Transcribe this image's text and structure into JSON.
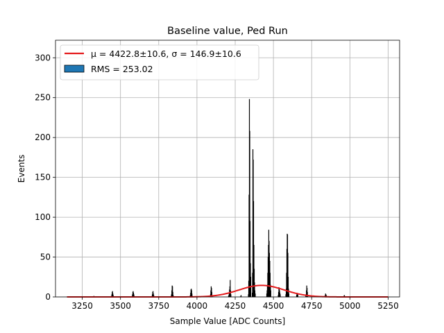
{
  "chart_data": {
    "type": "histogram",
    "title": "Baseline value, Ped Run",
    "xlabel": "Sample Value [ADC Counts]",
    "ylabel": "Events",
    "xlim": [
      3075,
      5325
    ],
    "ylim": [
      0,
      322
    ],
    "xticks": [
      3250,
      3500,
      3750,
      4000,
      4250,
      4500,
      4750,
      5000,
      5250
    ],
    "yticks": [
      0,
      50,
      100,
      150,
      200,
      250,
      300
    ],
    "grid": true,
    "legend_position": "top-left",
    "histogram": {
      "name": "RMS = 253.02",
      "bar_color": "#000000",
      "legend_patch_color": "#1f77b4",
      "clusters": [
        {
          "x": 3325,
          "values": [
            1
          ]
        },
        {
          "x": 3440,
          "values": [
            1,
            3,
            6,
            7,
            4,
            2
          ]
        },
        {
          "x": 3575,
          "values": [
            1,
            3,
            6,
            7,
            5,
            3,
            1
          ]
        },
        {
          "x": 3705,
          "values": [
            1,
            3,
            6,
            7,
            4,
            2
          ]
        },
        {
          "x": 3830,
          "values": [
            1,
            3,
            8,
            14,
            13,
            6,
            2
          ]
        },
        {
          "x": 3955,
          "values": [
            2,
            5,
            9,
            10,
            8,
            4,
            1
          ]
        },
        {
          "x": 4085,
          "values": [
            1,
            3,
            8,
            13,
            11,
            6,
            2
          ]
        },
        {
          "x": 4205,
          "values": [
            1,
            2,
            5,
            9,
            13,
            21,
            8,
            3
          ]
        },
        {
          "x": 4285,
          "values": [
            1,
            2
          ]
        },
        {
          "x": 4335,
          "values": [
            3,
            20,
            128,
            248,
            208,
            95,
            42,
            25
          ]
        },
        {
          "x": 4360,
          "values": [
            5,
            30,
            185,
            172,
            120,
            65,
            35,
            18,
            8,
            4
          ]
        },
        {
          "x": 4455,
          "values": [
            4,
            8,
            15,
            30,
            50,
            65,
            84,
            70,
            55,
            45,
            30,
            15,
            8
          ]
        },
        {
          "x": 4530,
          "values": [
            2,
            6,
            12,
            10,
            8,
            5,
            3
          ]
        },
        {
          "x": 4580,
          "values": [
            3,
            10,
            30,
            60,
            79,
            78,
            55,
            25,
            10,
            4
          ]
        },
        {
          "x": 4650,
          "values": [
            2,
            5,
            4,
            3,
            2
          ]
        },
        {
          "x": 4710,
          "values": [
            1,
            3,
            8,
            14,
            11,
            6,
            2
          ]
        },
        {
          "x": 4835,
          "values": [
            1,
            2,
            4,
            3,
            2,
            1
          ]
        },
        {
          "x": 4960,
          "values": [
            1,
            2,
            1
          ]
        }
      ]
    },
    "fit": {
      "name": "μ = 4422.8±10.6, σ = 146.9±10.6",
      "color": "#e41a1c",
      "type": "gaussian",
      "mu": 4422.8,
      "sigma": 146.9,
      "amplitude": 14.5,
      "x_range": [
        3150,
        5250
      ]
    }
  }
}
